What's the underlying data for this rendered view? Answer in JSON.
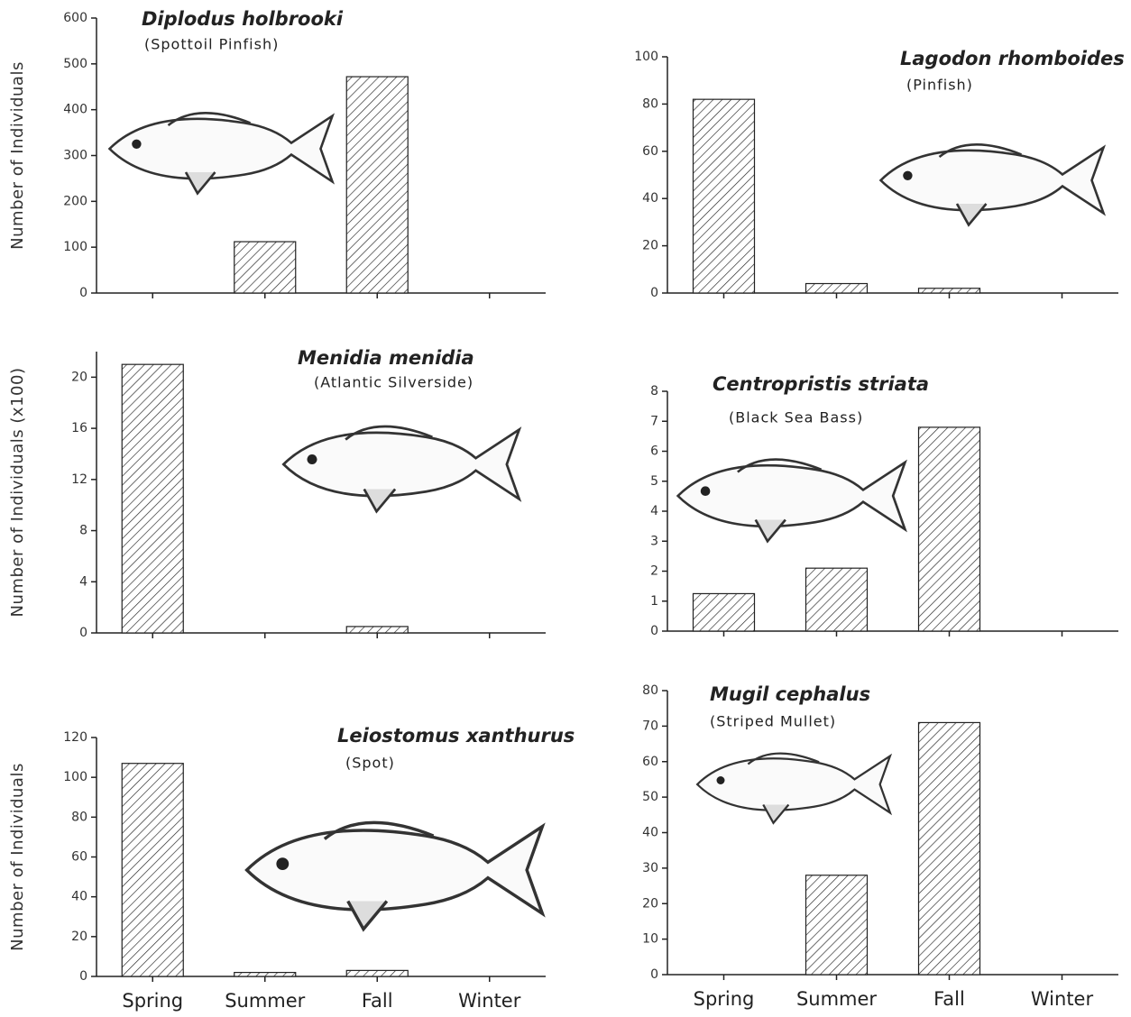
{
  "chart_data": [
    {
      "type": "bar",
      "title": "Diplodus holbrooki",
      "subtitle": "(Spottoil Pinfish)",
      "y_label": "Number of Individuals",
      "categories": [
        null,
        null,
        null,
        null
      ],
      "values": [
        0,
        112,
        472,
        0
      ],
      "ylim": [
        0,
        600
      ],
      "yticks": [
        0,
        100,
        200,
        300,
        400,
        500,
        600
      ],
      "color": "#222222"
    },
    {
      "type": "bar",
      "title": "Lagodon rhomboides",
      "subtitle": "(Pinfish)",
      "categories": [
        null,
        null,
        null,
        null
      ],
      "values": [
        82,
        4,
        2,
        0
      ],
      "ylim": [
        0,
        100
      ],
      "yticks": [
        0,
        20,
        40,
        60,
        80,
        100
      ],
      "color": "#222222"
    },
    {
      "type": "bar",
      "title": "Menidia menidia",
      "subtitle": "(Atlantic Silverside)",
      "y_label": "Number of Individuals (x100)",
      "categories": [
        null,
        null,
        null,
        null
      ],
      "values": [
        21,
        0,
        0.5,
        0
      ],
      "ylim": [
        0,
        22
      ],
      "yticks": [
        0,
        4,
        8,
        12,
        16,
        20
      ],
      "color": "#222222"
    },
    {
      "type": "bar",
      "title": "Centropristis striata",
      "subtitle": "(Black Sea Bass)",
      "categories": [
        null,
        null,
        null,
        null
      ],
      "values": [
        1.25,
        2.1,
        6.8,
        0
      ],
      "ylim": [
        0,
        8
      ],
      "yticks": [
        0,
        1,
        2,
        3,
        4,
        5,
        6,
        7,
        8
      ],
      "color": "#222222"
    },
    {
      "type": "bar",
      "title": "Leiostomus xanthurus",
      "subtitle": "(Spot)",
      "y_label": "Number of Individuals",
      "categories": [
        "Spring",
        "Summer",
        "Fall",
        "Winter"
      ],
      "values": [
        107,
        2,
        3,
        0
      ],
      "ylim": [
        0,
        120
      ],
      "yticks": [
        0,
        20,
        40,
        60,
        80,
        100,
        120
      ],
      "color": "#222222"
    },
    {
      "type": "bar",
      "title": "Mugil cephalus",
      "subtitle": "(Striped Mullet)",
      "categories": [
        "Spring",
        "Summer",
        "Fall",
        "Winter"
      ],
      "values": [
        0,
        28,
        71,
        0
      ],
      "ylim": [
        0,
        80
      ],
      "yticks": [
        0,
        10,
        20,
        30,
        40,
        50,
        60,
        70,
        80
      ],
      "color": "#222222"
    }
  ]
}
